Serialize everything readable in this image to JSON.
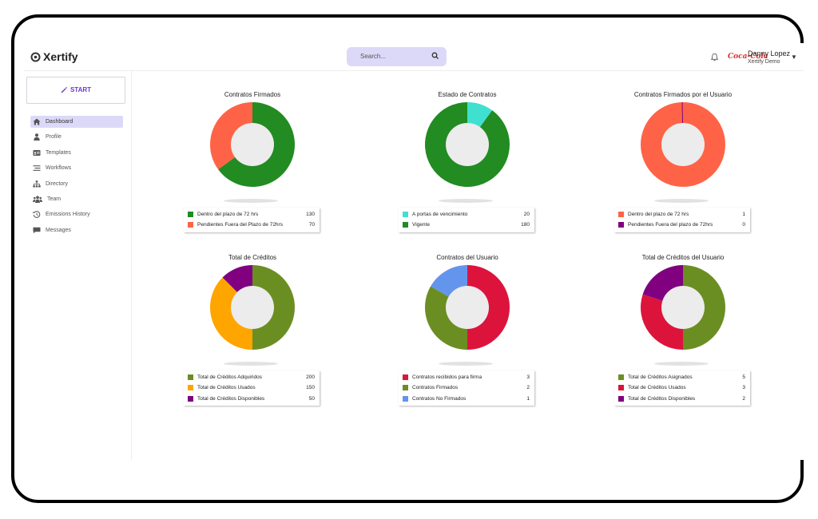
{
  "header": {
    "logo_text": "Xertify",
    "search_placeholder": "Search...",
    "brand": "Coca-Cola",
    "user_name": "Danny Lopez",
    "user_org": "Xertify Demo"
  },
  "sidebar": {
    "start_label": "START",
    "items": [
      {
        "label": "Dashboard",
        "icon": "home-icon"
      },
      {
        "label": "Profile",
        "icon": "user-icon"
      },
      {
        "label": "Templates",
        "icon": "id-card-icon"
      },
      {
        "label": "Workflows",
        "icon": "list-icon"
      },
      {
        "label": "Directory",
        "icon": "sitemap-icon"
      },
      {
        "label": "Team",
        "icon": "team-icon"
      },
      {
        "label": "Emissions History",
        "icon": "history-icon"
      },
      {
        "label": "Messages",
        "icon": "message-icon"
      }
    ]
  },
  "chart_data": [
    {
      "type": "pie",
      "title": "Contratos Firmados",
      "slices": [
        {
          "label": "Dentro del plazo de 72 hrs",
          "value": 130,
          "color": "#228b22"
        },
        {
          "label": "Pendientes Fuera del Plazo de 72hrs",
          "value": 70,
          "color": "#ff6347"
        }
      ]
    },
    {
      "type": "pie",
      "title": "Estado de Contratos",
      "slices": [
        {
          "label": "A portas de vencimiento",
          "value": 20,
          "color": "#40e0d0"
        },
        {
          "label": "Vigente",
          "value": 180,
          "color": "#228b22"
        }
      ]
    },
    {
      "type": "pie",
      "title": "Contratos Firmados por el Usuario",
      "slices": [
        {
          "label": "Dentro del plazo de 72 hrs",
          "value": 1,
          "color": "#ff6347"
        },
        {
          "label": "Pendientes Fuera del plazo de 72hrs",
          "value": 0,
          "color": "#800080"
        }
      ]
    },
    {
      "type": "pie",
      "title": "Total de Créditos",
      "slices": [
        {
          "label": "Total de Créditos Adquiridos",
          "value": 200,
          "color": "#6b8e23"
        },
        {
          "label": "Total de Créditos Usados",
          "value": 150,
          "color": "#ffa500"
        },
        {
          "label": "Total de Créditos Disponibles",
          "value": 50,
          "color": "#800080"
        }
      ]
    },
    {
      "type": "pie",
      "title": "Contratos del Usuario",
      "slices": [
        {
          "label": "Contratos recibidos para firma",
          "value": 3,
          "color": "#dc143c"
        },
        {
          "label": "Contratos Firmados",
          "value": 2,
          "color": "#6b8e23"
        },
        {
          "label": "Contratos No Firmados",
          "value": 1,
          "color": "#6495ed"
        }
      ]
    },
    {
      "type": "pie",
      "title": "Total de Créditos del Usuario",
      "slices": [
        {
          "label": "Total de Créditos Asignados",
          "value": 5,
          "color": "#6b8e23"
        },
        {
          "label": "Total de Créditos Usados",
          "value": 3,
          "color": "#dc143c"
        },
        {
          "label": "Total de Créditos Disponibles",
          "value": 2,
          "color": "#800080"
        }
      ]
    }
  ]
}
